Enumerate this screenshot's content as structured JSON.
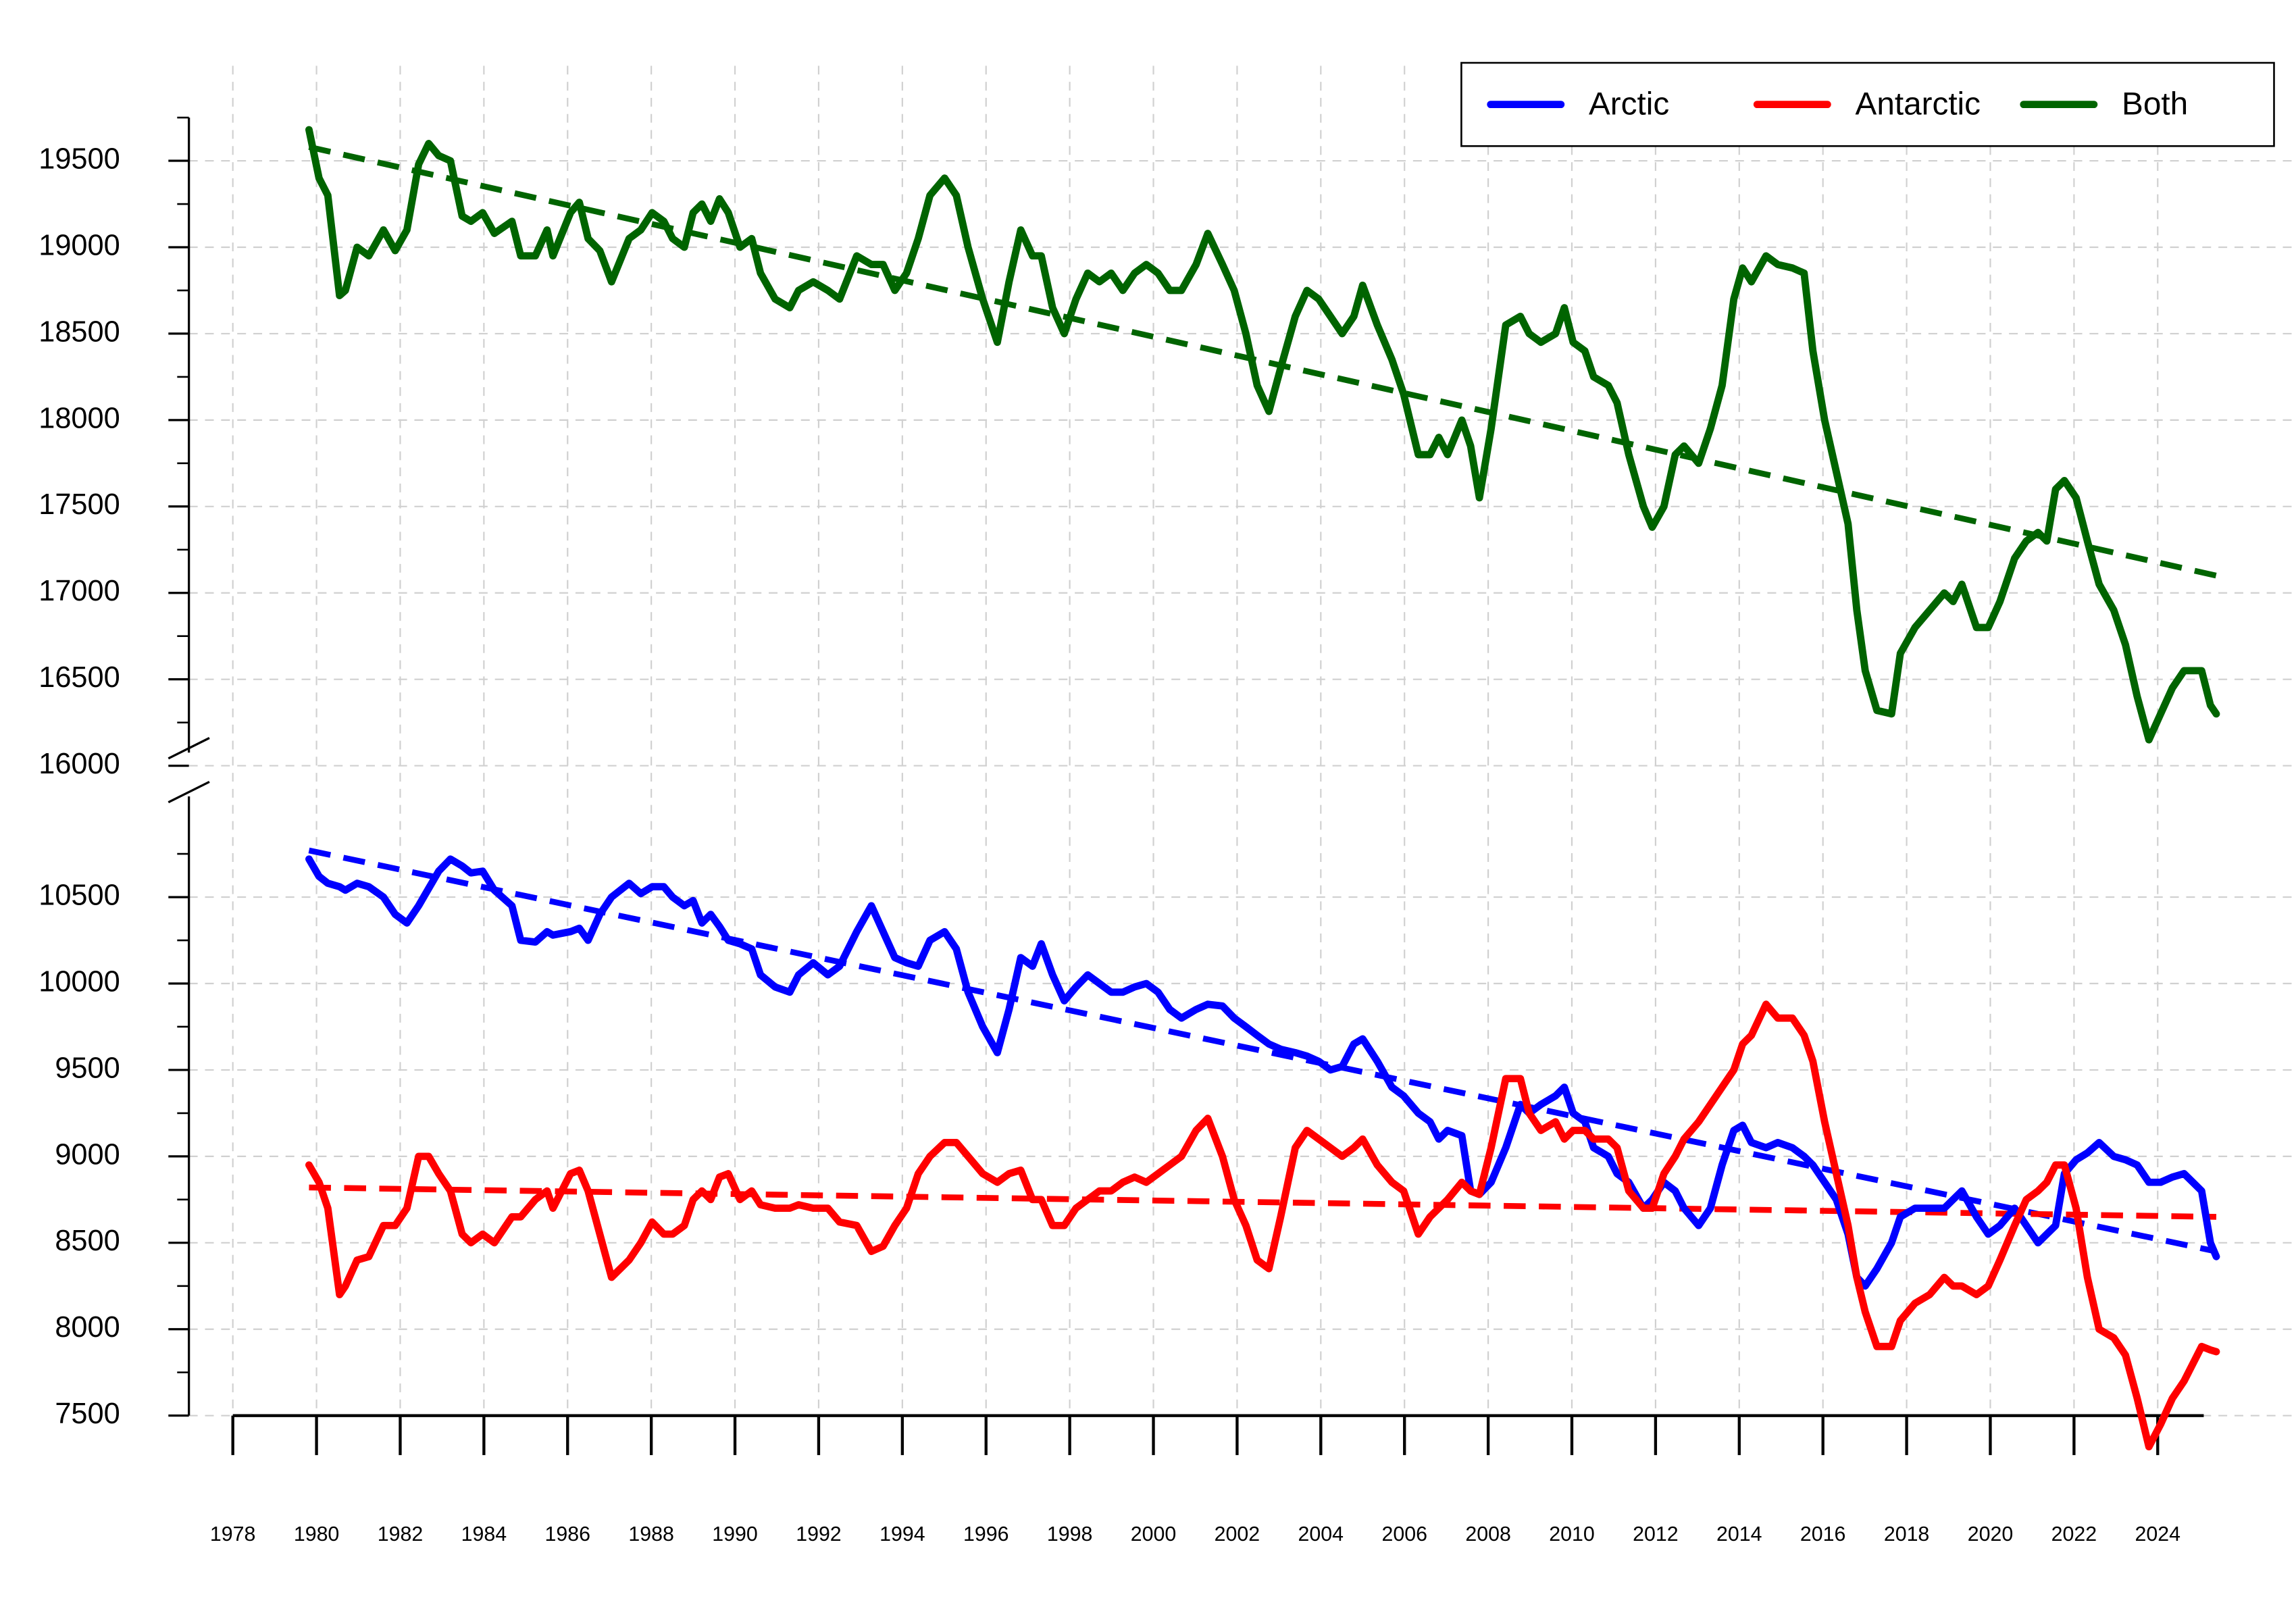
{
  "chart_data": {
    "type": "line",
    "x": [
      1979.82,
      1980.06,
      1980.27,
      1980.55,
      1980.69,
      1980.97,
      1981.25,
      1981.6,
      1981.88,
      1982.16,
      1982.44,
      1982.68,
      1982.92,
      1983.2,
      1983.48,
      1983.69,
      1983.97,
      1984.25,
      1984.67,
      1984.88,
      1985.23,
      1985.51,
      1985.65,
      1986.07,
      1986.28,
      1986.49,
      1986.77,
      1987.05,
      1987.47,
      1987.75,
      1988.02,
      1988.3,
      1988.51,
      1988.79,
      1989.0,
      1989.21,
      1989.42,
      1989.63,
      1989.84,
      1990.12,
      1990.4,
      1990.61,
      1990.96,
      1991.31,
      1991.52,
      1991.87,
      1992.22,
      1992.5,
      1992.91,
      1993.26,
      1993.54,
      1993.82,
      1994.1,
      1994.38,
      1994.66,
      1995.01,
      1995.29,
      1995.57,
      1995.92,
      1996.27,
      1996.55,
      1996.83,
      1997.11,
      1997.32,
      1997.59,
      1997.87,
      1998.15,
      1998.43,
      1998.71,
      1998.99,
      1999.27,
      1999.55,
      1999.83,
      2000.11,
      2000.39,
      2000.67,
      2001.02,
      2001.3,
      2001.65,
      2001.93,
      2002.21,
      2002.48,
      2002.76,
      2003.04,
      2003.39,
      2003.67,
      2003.95,
      2004.23,
      2004.51,
      2004.79,
      2005.0,
      2005.35,
      2005.7,
      2005.98,
      2006.33,
      2006.61,
      2006.82,
      2007.03,
      2007.37,
      2007.58,
      2007.79,
      2008.07,
      2008.42,
      2008.77,
      2008.98,
      2009.26,
      2009.61,
      2009.82,
      2010.03,
      2010.31,
      2010.52,
      2010.87,
      2011.08,
      2011.36,
      2011.71,
      2011.92,
      2012.2,
      2012.47,
      2012.68,
      2013.03,
      2013.31,
      2013.59,
      2013.87,
      2014.08,
      2014.29,
      2014.64,
      2014.92,
      2015.27,
      2015.55,
      2015.76,
      2016.04,
      2016.32,
      2016.6,
      2016.81,
      2017.01,
      2017.29,
      2017.64,
      2017.85,
      2018.2,
      2018.55,
      2018.9,
      2019.11,
      2019.32,
      2019.67,
      2019.95,
      2020.23,
      2020.58,
      2020.86,
      2021.14,
      2021.35,
      2021.56,
      2021.77,
      2022.05,
      2022.32,
      2022.6,
      2022.95,
      2023.23,
      2023.51,
      2023.79,
      2024.07,
      2024.35,
      2024.63,
      2024.84,
      2025.05,
      2025.26,
      2025.4
    ],
    "series": [
      {
        "name": "Arctic",
        "color": "#0000ff",
        "values": [
          10720,
          10620,
          10580,
          10560,
          10540,
          10580,
          10560,
          10500,
          10400,
          10350,
          10450,
          10550,
          10650,
          10720,
          10680,
          10640,
          10650,
          10540,
          10450,
          10250,
          10240,
          10300,
          10280,
          10300,
          10320,
          10250,
          10400,
          10500,
          10580,
          10520,
          10560,
          10560,
          10500,
          10450,
          10480,
          10350,
          10400,
          10330,
          10250,
          10230,
          10200,
          10050,
          9980,
          9950,
          10050,
          10120,
          10050,
          10100,
          10300,
          10450,
          10300,
          10150,
          10120,
          10100,
          10250,
          10300,
          10200,
          9950,
          9750,
          9600,
          9850,
          10150,
          10100,
          10230,
          10050,
          9900,
          9980,
          10050,
          10000,
          9950,
          9950,
          9980,
          10000,
          9950,
          9850,
          9800,
          9850,
          9880,
          9870,
          9800,
          9750,
          9700,
          9650,
          9620,
          9600,
          9580,
          9550,
          9500,
          9520,
          9650,
          9680,
          9550,
          9400,
          9350,
          9250,
          9200,
          9100,
          9150,
          9120,
          8800,
          8780,
          8850,
          9050,
          9300,
          9250,
          9300,
          9350,
          9400,
          9250,
          9200,
          9050,
          9000,
          8900,
          8850,
          8700,
          8750,
          8850,
          8800,
          8700,
          8600,
          8700,
          8950,
          9150,
          9180,
          9080,
          9050,
          9080,
          9050,
          9000,
          8950,
          8850,
          8750,
          8550,
          8300,
          8250,
          8350,
          8500,
          8650,
          8700,
          8700,
          8700,
          8750,
          8800,
          8650,
          8550,
          8600,
          8700,
          8600,
          8500,
          8550,
          8600,
          8900,
          8980,
          9020,
          9080,
          9000,
          8980,
          8950,
          8850,
          8850,
          8880,
          8900,
          8850,
          8800,
          8500,
          8420
        ],
        "trend": [
          10770,
          8450
        ]
      },
      {
        "name": "Antarctic",
        "color": "#ff0000",
        "values": [
          8950,
          8850,
          8700,
          8200,
          8250,
          8400,
          8420,
          8600,
          8600,
          8700,
          9000,
          9000,
          8900,
          8800,
          8550,
          8500,
          8550,
          8500,
          8650,
          8650,
          8750,
          8800,
          8700,
          8900,
          8920,
          8800,
          8550,
          8300,
          8400,
          8500,
          8620,
          8550,
          8550,
          8600,
          8750,
          8800,
          8750,
          8880,
          8900,
          8750,
          8800,
          8720,
          8700,
          8700,
          8720,
          8700,
          8700,
          8620,
          8600,
          8450,
          8480,
          8600,
          8700,
          8900,
          9000,
          9080,
          9080,
          9000,
          8900,
          8850,
          8900,
          8920,
          8750,
          8750,
          8600,
          8600,
          8700,
          8750,
          8800,
          8800,
          8850,
          8880,
          8850,
          8900,
          8950,
          9000,
          9150,
          9220,
          9000,
          8750,
          8600,
          8400,
          8350,
          8650,
          9050,
          9150,
          9100,
          9050,
          9000,
          9050,
          9100,
          8950,
          8850,
          8800,
          8550,
          8650,
          8700,
          8750,
          8850,
          8800,
          8780,
          9050,
          9450,
          9450,
          9250,
          9150,
          9200,
          9100,
          9150,
          9150,
          9100,
          9100,
          9050,
          8800,
          8700,
          8700,
          8900,
          9000,
          9100,
          9200,
          9300,
          9400,
          9500,
          9650,
          9700,
          9880,
          9800,
          9800,
          9700,
          9550,
          9200,
          8900,
          8600,
          8300,
          8100,
          7900,
          7900,
          8050,
          8150,
          8200,
          8300,
          8250,
          8250,
          8200,
          8250,
          8400,
          8600,
          8750,
          8800,
          8850,
          8950,
          8950,
          8700,
          8300,
          8000,
          7950,
          7850,
          7600,
          7320,
          7450,
          7600,
          7700,
          7800,
          7900,
          7880,
          7870
        ],
        "trend": [
          8820,
          8650
        ]
      },
      {
        "name": "Both",
        "color": "#006400",
        "values": [
          19680,
          19400,
          19300,
          18720,
          18750,
          19000,
          18950,
          19100,
          18980,
          19100,
          19480,
          19600,
          19530,
          19500,
          19180,
          19150,
          19200,
          19080,
          19150,
          18950,
          18950,
          19100,
          18950,
          19200,
          19260,
          19050,
          18980,
          18800,
          19050,
          19100,
          19200,
          19150,
          19050,
          19000,
          19200,
          19250,
          19150,
          19280,
          19200,
          19000,
          19050,
          18850,
          18700,
          18650,
          18750,
          18800,
          18750,
          18700,
          18950,
          18900,
          18900,
          18750,
          18850,
          19050,
          19300,
          19400,
          19300,
          19000,
          18700,
          18450,
          18800,
          19100,
          18950,
          18950,
          18650,
          18500,
          18700,
          18850,
          18800,
          18850,
          18750,
          18850,
          18900,
          18850,
          18750,
          18750,
          18900,
          19080,
          18900,
          18750,
          18500,
          18200,
          18050,
          18300,
          18600,
          18750,
          18700,
          18600,
          18500,
          18600,
          18780,
          18550,
          18350,
          18150,
          17800,
          17800,
          17900,
          17800,
          18000,
          17850,
          17550,
          17950,
          18550,
          18600,
          18500,
          18450,
          18500,
          18650,
          18450,
          18400,
          18250,
          18200,
          18100,
          17800,
          17500,
          17380,
          17500,
          17800,
          17850,
          17750,
          17950,
          18200,
          18700,
          18880,
          18800,
          18950,
          18900,
          18880,
          18850,
          18400,
          18000,
          17700,
          17400,
          16900,
          16550,
          16320,
          16300,
          16650,
          16800,
          16900,
          17000,
          16950,
          17050,
          16800,
          16800,
          16950,
          17200,
          17300,
          17350,
          17300,
          17600,
          17650,
          17550,
          17300,
          17050,
          16900,
          16700,
          16400,
          16150,
          16300,
          16450,
          16550,
          16550,
          16550,
          16350,
          16300
        ],
        "trend": [
          19580,
          17100
        ]
      }
    ],
    "trend_x": [
      1979.82,
      2025.4
    ],
    "xlim": [
      1976.95,
      2027.2
    ],
    "xticks": [
      1978,
      1980,
      1982,
      1984,
      1986,
      1988,
      1990,
      1992,
      1994,
      1996,
      1998,
      2000,
      2002,
      2004,
      2006,
      2008,
      2010,
      2012,
      2014,
      2016,
      2018,
      2020,
      2022,
      2024
    ],
    "ylim": [
      7500,
      20050
    ],
    "axis_break": [
      11260,
      16000
    ],
    "yticks": [
      7500,
      8000,
      8500,
      9000,
      9500,
      10000,
      10500,
      16000,
      16500,
      17000,
      17500,
      18000,
      18500,
      19000,
      19500
    ],
    "yminorticks": [
      7750,
      8250,
      8750,
      9250,
      9750,
      10250,
      10750,
      16250,
      16750,
      17250,
      17750,
      18250,
      18750,
      19250,
      19750
    ],
    "grid": true,
    "legend": "upper right"
  }
}
